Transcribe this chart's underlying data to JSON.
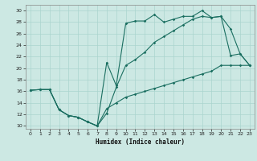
{
  "xlabel": "Humidex (Indice chaleur)",
  "bg_color": "#cce8e3",
  "grid_color": "#aad4ce",
  "line_color": "#1a6e60",
  "xlim": [
    -0.5,
    23.5
  ],
  "ylim": [
    9.5,
    31
  ],
  "xticks": [
    0,
    1,
    2,
    3,
    4,
    5,
    6,
    7,
    8,
    9,
    10,
    11,
    12,
    13,
    14,
    15,
    16,
    17,
    18,
    19,
    20,
    21,
    22,
    23
  ],
  "yticks": [
    10,
    12,
    14,
    16,
    18,
    20,
    22,
    24,
    26,
    28,
    30
  ],
  "line1_x": [
    0,
    1,
    2,
    3,
    4,
    5,
    6,
    7,
    8,
    9,
    10,
    11,
    12,
    13,
    14,
    15,
    16,
    17,
    18,
    19,
    20,
    21,
    22,
    23
  ],
  "line1_y": [
    16.2,
    16.3,
    16.3,
    12.8,
    11.8,
    11.5,
    10.7,
    10.0,
    21.0,
    17.0,
    27.8,
    28.2,
    28.2,
    29.3,
    28.0,
    28.5,
    29.0,
    29.0,
    30.0,
    28.8,
    29.0,
    26.8,
    22.5,
    20.5
  ],
  "line2_x": [
    0,
    1,
    2,
    3,
    4,
    5,
    6,
    7,
    8,
    9,
    10,
    11,
    12,
    13,
    14,
    15,
    16,
    17,
    18,
    19,
    20,
    21,
    22,
    23
  ],
  "line2_y": [
    16.2,
    16.3,
    16.3,
    12.8,
    11.8,
    11.5,
    10.7,
    10.0,
    12.2,
    16.7,
    20.5,
    21.5,
    22.8,
    24.5,
    25.5,
    26.5,
    27.5,
    28.5,
    29.0,
    28.8,
    29.0,
    22.2,
    22.5,
    20.5
  ],
  "line3_x": [
    0,
    1,
    2,
    3,
    4,
    5,
    6,
    7,
    8,
    9,
    10,
    11,
    12,
    13,
    14,
    15,
    16,
    17,
    18,
    19,
    20,
    21,
    22,
    23
  ],
  "line3_y": [
    16.2,
    16.3,
    16.3,
    12.8,
    11.8,
    11.5,
    10.7,
    10.0,
    13.0,
    14.0,
    15.0,
    15.5,
    16.0,
    16.5,
    17.0,
    17.5,
    18.0,
    18.5,
    19.0,
    19.5,
    20.5,
    20.5,
    20.5,
    20.5
  ]
}
